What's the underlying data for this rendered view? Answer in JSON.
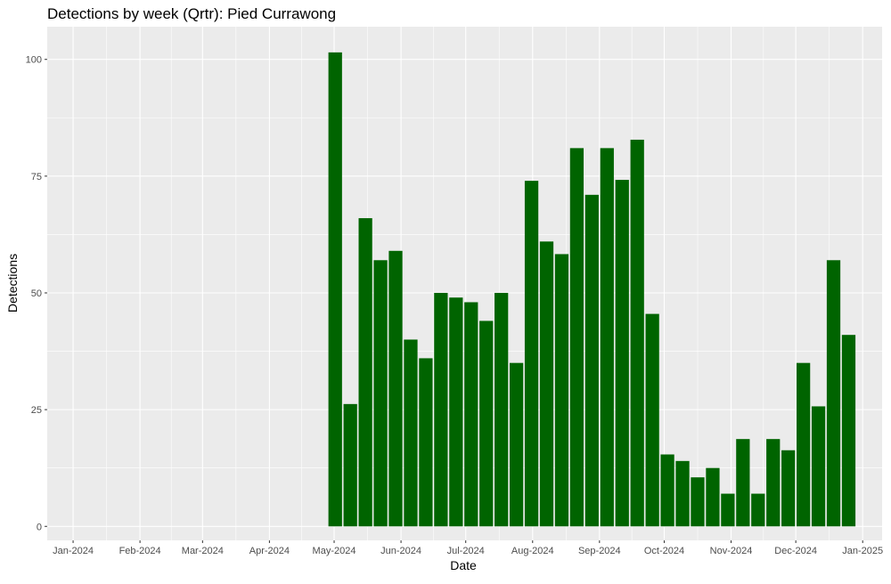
{
  "chart_data": {
    "type": "bar",
    "title": "Detections by week (Qrtr): Pied Currawong",
    "xlabel": "Date",
    "ylabel": "Detections",
    "x_axis_type": "date",
    "xlim": [
      "2023-12-20",
      "2025-01-10"
    ],
    "ylim": [
      -3,
      107
    ],
    "x_ticks": [
      {
        "date": "2024-01-01",
        "label": "Jan-2024"
      },
      {
        "date": "2024-02-01",
        "label": "Feb-2024"
      },
      {
        "date": "2024-03-01",
        "label": "Mar-2024"
      },
      {
        "date": "2024-04-01",
        "label": "Apr-2024"
      },
      {
        "date": "2024-05-01",
        "label": "May-2024"
      },
      {
        "date": "2024-06-01",
        "label": "Jun-2024"
      },
      {
        "date": "2024-07-01",
        "label": "Jul-2024"
      },
      {
        "date": "2024-08-01",
        "label": "Aug-2024"
      },
      {
        "date": "2024-09-01",
        "label": "Sep-2024"
      },
      {
        "date": "2024-10-01",
        "label": "Oct-2024"
      },
      {
        "date": "2024-11-01",
        "label": "Nov-2024"
      },
      {
        "date": "2024-12-01",
        "label": "Dec-2024"
      },
      {
        "date": "2025-01-01",
        "label": "Jan-2025"
      }
    ],
    "y_ticks": [
      0,
      25,
      50,
      75,
      100
    ],
    "grid": true,
    "colors": {
      "bar": "#006400",
      "panel": "#EBEBEB",
      "grid": "#FFFFFF"
    },
    "series": [
      {
        "values": [
          {
            "x": "2024-04-28",
            "y": 101.5
          },
          {
            "x": "2024-05-05",
            "y": 26.2
          },
          {
            "x": "2024-05-12",
            "y": 66
          },
          {
            "x": "2024-05-19",
            "y": 57
          },
          {
            "x": "2024-05-26",
            "y": 59
          },
          {
            "x": "2024-06-02",
            "y": 40
          },
          {
            "x": "2024-06-09",
            "y": 36
          },
          {
            "x": "2024-06-16",
            "y": 50
          },
          {
            "x": "2024-06-23",
            "y": 49
          },
          {
            "x": "2024-06-30",
            "y": 48
          },
          {
            "x": "2024-07-07",
            "y": 44
          },
          {
            "x": "2024-07-14",
            "y": 50
          },
          {
            "x": "2024-07-21",
            "y": 35
          },
          {
            "x": "2024-07-28",
            "y": 74
          },
          {
            "x": "2024-08-04",
            "y": 61
          },
          {
            "x": "2024-08-11",
            "y": 58.3
          },
          {
            "x": "2024-08-18",
            "y": 81
          },
          {
            "x": "2024-08-25",
            "y": 71
          },
          {
            "x": "2024-09-01",
            "y": 81
          },
          {
            "x": "2024-09-08",
            "y": 74.2
          },
          {
            "x": "2024-09-15",
            "y": 82.8
          },
          {
            "x": "2024-09-22",
            "y": 45.5
          },
          {
            "x": "2024-09-29",
            "y": 15.4
          },
          {
            "x": "2024-10-06",
            "y": 14
          },
          {
            "x": "2024-10-13",
            "y": 10.5
          },
          {
            "x": "2024-10-20",
            "y": 12.5
          },
          {
            "x": "2024-10-27",
            "y": 7
          },
          {
            "x": "2024-11-03",
            "y": 18.7
          },
          {
            "x": "2024-11-10",
            "y": 7
          },
          {
            "x": "2024-11-17",
            "y": 18.7
          },
          {
            "x": "2024-11-24",
            "y": 16.3
          },
          {
            "x": "2024-12-01",
            "y": 35
          },
          {
            "x": "2024-12-08",
            "y": 25.7
          },
          {
            "x": "2024-12-15",
            "y": 57
          },
          {
            "x": "2024-12-22",
            "y": 41
          }
        ]
      }
    ]
  }
}
